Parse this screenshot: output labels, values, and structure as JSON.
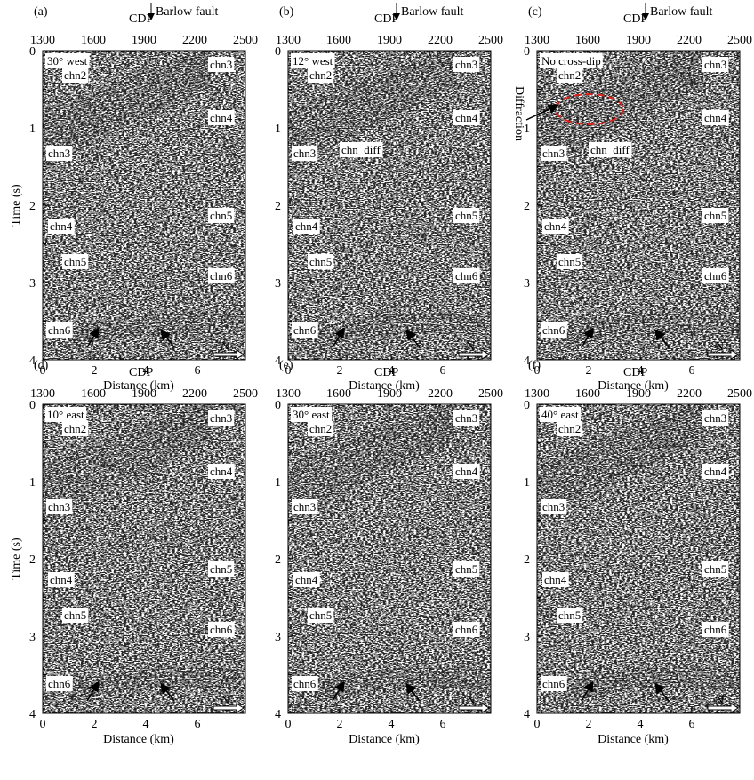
{
  "axes": {
    "cdp_label": "CDP",
    "cdp_ticks": [
      1300,
      1600,
      1900,
      2200,
      2500
    ],
    "time_label": "Time (s)",
    "time_ticks": [
      0,
      1,
      2,
      3,
      4
    ],
    "distance_label": "Distance (km)",
    "distance_ticks": [
      0,
      2,
      4,
      6
    ]
  },
  "panels": [
    {
      "letter": "(a)",
      "dip": "30° west",
      "fault": "Barlow fault",
      "north": "N",
      "labels": {
        "chn3_top": "chn3",
        "chn2": "chn2",
        "chn4_right": "chn4",
        "chn3_left": "chn3",
        "chn5_right": "chn5",
        "chn4_left": "chn4",
        "chn5_left": "chn5",
        "chn6_right": "chn6",
        "chn6_left": "chn6"
      }
    },
    {
      "letter": "(b)",
      "dip": "12° west",
      "fault": "Barlow fault",
      "north": "N",
      "labels": {
        "chn3_top": "chn3",
        "chn2": "chn2",
        "chn4_right": "chn4",
        "chn3_left": "chn3",
        "chn_diff": "chn_diff",
        "chn5_right": "chn5",
        "chn4_left": "chn4",
        "chn5_left": "chn5",
        "chn6_right": "chn6",
        "chn6_left": "chn6"
      }
    },
    {
      "letter": "(c)",
      "dip": "No cross-dip",
      "fault": "Barlow fault",
      "north": "N",
      "annotation": "Diffraction",
      "labels": {
        "chn3_top": "chn3",
        "chn2": "chn2",
        "chn4_right": "chn4",
        "chn3_left": "chn3",
        "chn_diff": "chn_diff",
        "chn5_right": "chn5",
        "chn4_left": "chn4",
        "chn5_left": "chn5",
        "chn6_right": "chn6",
        "chn6_left": "chn6"
      }
    },
    {
      "letter": "(d)",
      "dip": "10° east",
      "north": "N",
      "labels": {
        "chn3_top": "chn3",
        "chn2": "chn2",
        "chn4_right": "chn4",
        "chn3_left": "chn3",
        "chn5_right": "chn5",
        "chn4_left": "chn4",
        "chn5_left": "chn5",
        "chn6_right": "chn6",
        "chn6_left": "chn6"
      }
    },
    {
      "letter": "(e)",
      "dip": "30° east",
      "north": "N",
      "labels": {
        "chn3_top": "chn3",
        "chn2": "chn2",
        "chn4_right": "chn4",
        "chn3_left": "chn3",
        "chn5_right": "chn5",
        "chn4_left": "chn4",
        "chn5_left": "chn5",
        "chn6_right": "chn6",
        "chn6_left": "chn6"
      }
    },
    {
      "letter": "(f)",
      "dip": "40° east",
      "north": "N",
      "labels": {
        "chn3_top": "chn3",
        "chn2": "chn2",
        "chn4_right": "chn4",
        "chn3_left": "chn3",
        "chn5_right": "chn5",
        "chn4_left": "chn4",
        "chn5_left": "chn5",
        "chn6_right": "chn6",
        "chn6_left": "chn6"
      }
    }
  ]
}
